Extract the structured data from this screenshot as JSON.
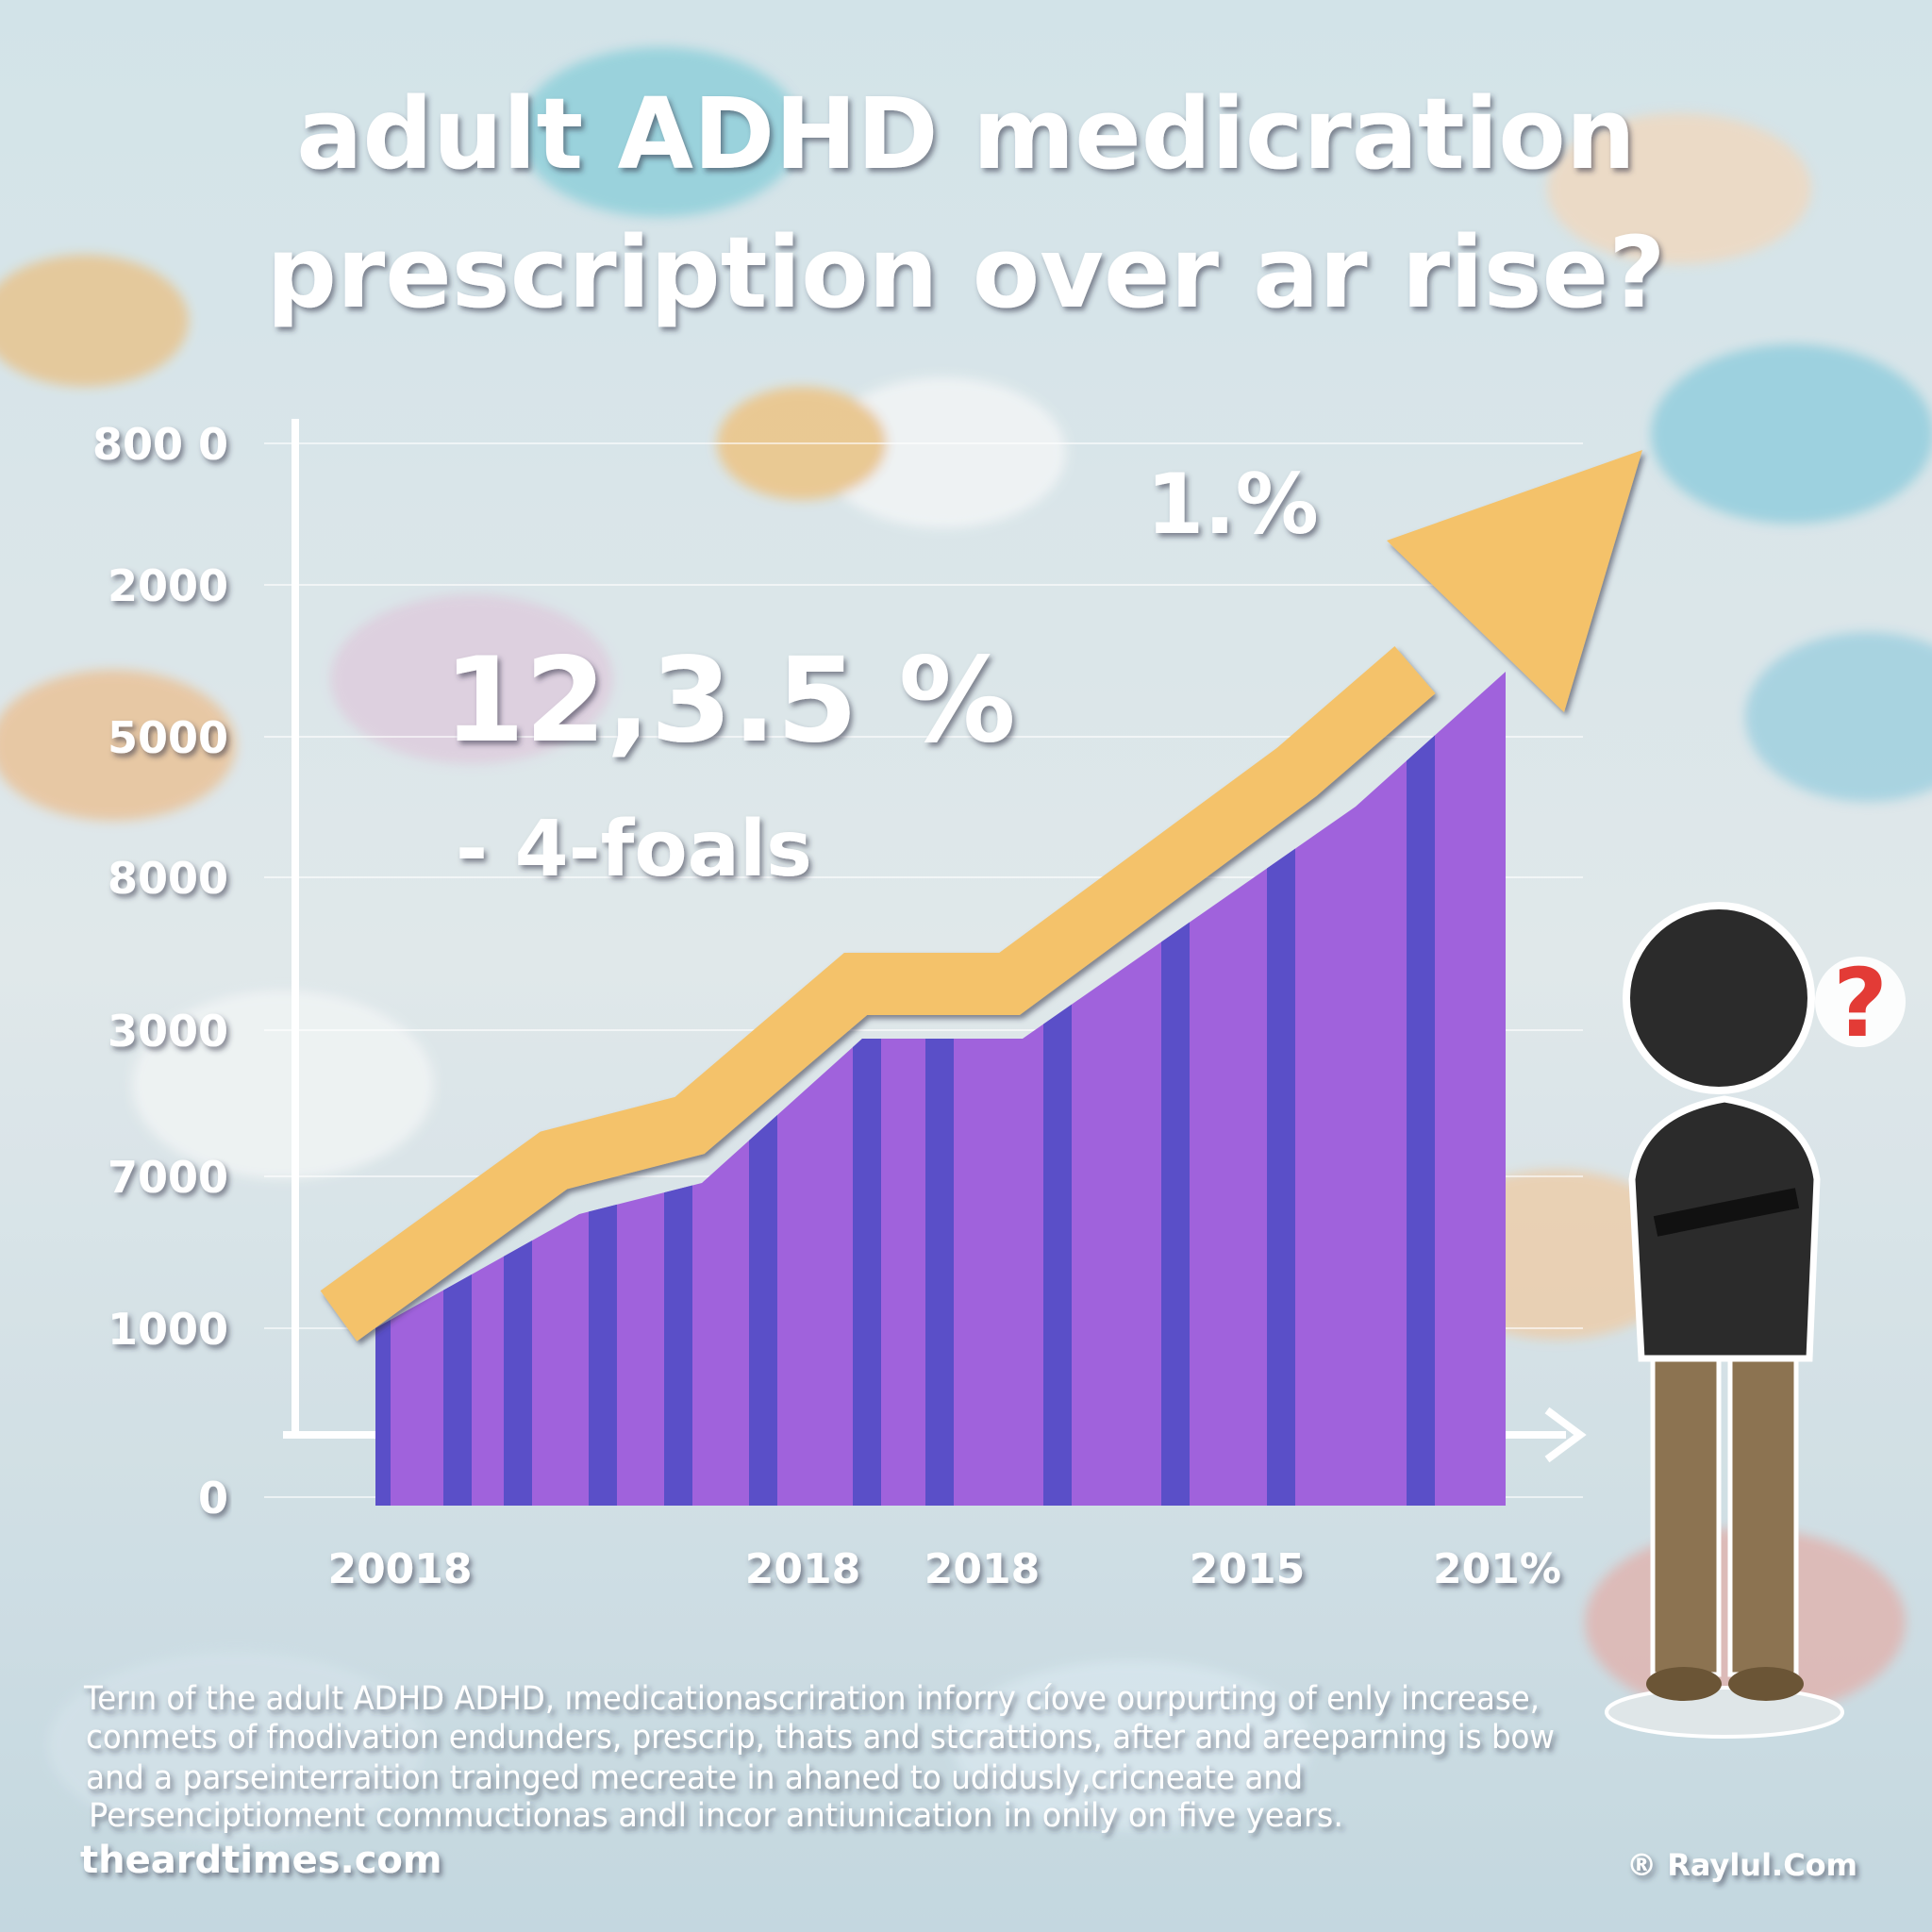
{
  "header": {
    "title_lines": [
      "adult ADHD medicration",
      "prescription over ar rise?"
    ]
  },
  "axis": {
    "y_labels": [
      "800 0",
      "2000",
      "5000",
      "8000",
      "3000",
      "7000",
      "1000",
      "0"
    ],
    "x_labels": [
      "20018",
      "2018",
      "2018",
      "2015",
      "201%"
    ]
  },
  "callouts": {
    "big": "12,3.5 %",
    "sub": "- 4-foals",
    "top": "1.%"
  },
  "figure": {
    "mark": "?"
  },
  "body": {
    "lines": [
      "Terın of the adult ADHD ADHD, ımedicationascriration inforry cíove ourpurting of enly increase,",
      "conmets of fnodivation endunders, prescrip, thats and stcrattions, after and areeparning is bow",
      "and a parseinterraition trainged mecreate in ahaned to udidusly,cricneate and",
      "Persenciptioment commuctionas andl incor antiunication in onily on five years."
    ]
  },
  "footer": {
    "source": "theardtimes.com",
    "credit": "® Raylul.Com"
  }
}
